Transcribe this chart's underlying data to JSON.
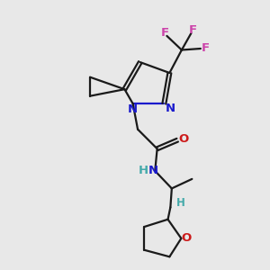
{
  "bg_color": "#e8e8e8",
  "bond_color": "#1a1a1a",
  "n_color": "#1a1acc",
  "o_color": "#cc1a1a",
  "f_color": "#cc44aa",
  "h_color": "#44aaaa",
  "figsize": [
    3.0,
    3.0
  ],
  "dpi": 100,
  "xlim": [
    0,
    10
  ],
  "ylim": [
    0,
    10
  ],
  "lw": 1.6,
  "fs": 9.5,
  "fs_small": 8.5
}
